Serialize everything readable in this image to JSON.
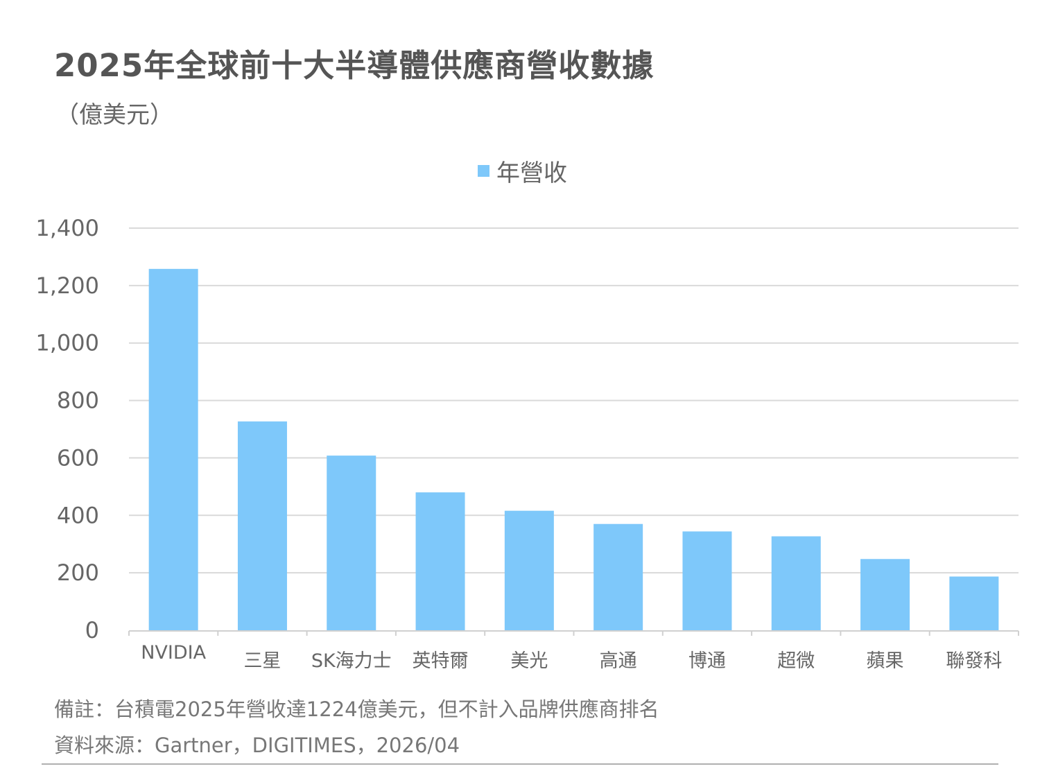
{
  "title": "2025年全球前十大半導體供應商營收數據",
  "subtitle": "（億美元）",
  "legend": {
    "label": "年營收",
    "color": "#7ec8fa"
  },
  "chart_data": {
    "type": "bar",
    "title": "2025年全球前十大半導體供應商營收數據",
    "ylabel": "（億美元）",
    "xlabel": "",
    "ylim": [
      0,
      1400
    ],
    "yticks": [
      0,
      200,
      400,
      600,
      800,
      1000,
      1200,
      1400
    ],
    "ytick_labels": [
      "0",
      "200",
      "400",
      "600",
      "800",
      "1,000",
      "1,200",
      "1,400"
    ],
    "grid": true,
    "legend_position": "top-center",
    "categories": [
      "NVIDIA",
      "三星",
      "SK海力士",
      "英特爾",
      "美光",
      "高通",
      "博通",
      "超微",
      "蘋果",
      "聯發科"
    ],
    "series": [
      {
        "name": "年營收",
        "color": "#7ec8fa",
        "values": [
          1258,
          727,
          608,
          480,
          416,
          370,
          344,
          327,
          248,
          187
        ]
      }
    ]
  },
  "footnote": "備註：台積電2025年營收達1224億美元，但不計入品牌供應商排名",
  "source": "資料來源：Gartner，DIGITIMES，2026/04"
}
